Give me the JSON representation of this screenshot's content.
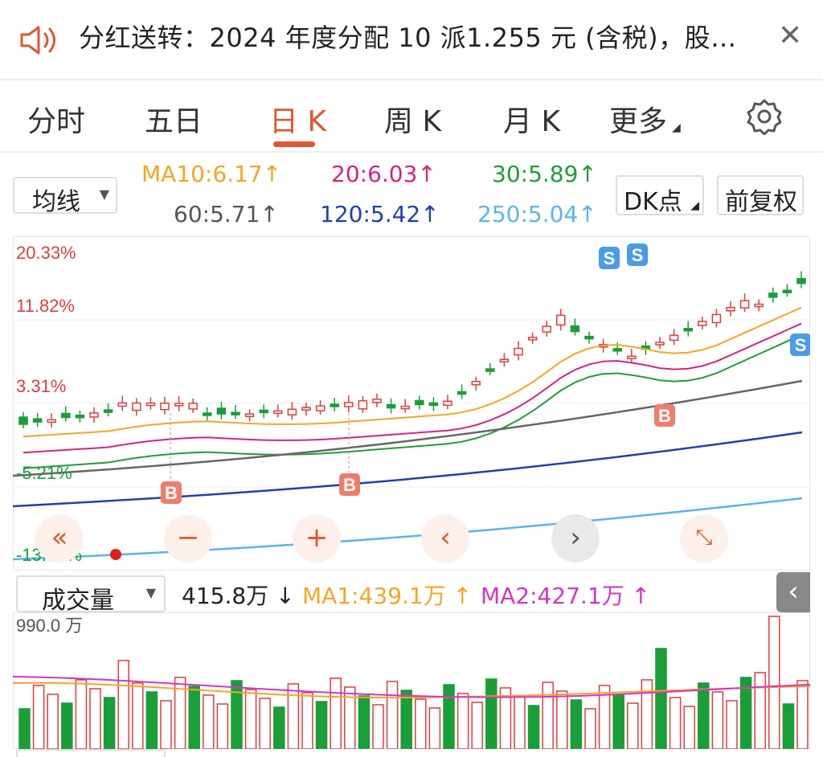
{
  "notice": {
    "text": "分红送转：2024 年度分配 10 派1.255 元 (含税)，股…",
    "close_icon": "close-icon",
    "speaker_icon": "speaker-icon"
  },
  "tabs": [
    {
      "label": "分时",
      "active": false
    },
    {
      "label": "五日",
      "active": false
    },
    {
      "label": "日 K",
      "active": true
    },
    {
      "label": "周 K",
      "active": false
    },
    {
      "label": "月 K",
      "active": false
    },
    {
      "label": "更多",
      "active": false
    }
  ],
  "indicator": {
    "select_label": "均线",
    "ma": [
      {
        "label": "MA10:6.17",
        "arrow": "↑",
        "color": "#f5a623"
      },
      {
        "label": "20:6.03",
        "arrow": "↑",
        "color": "#d6247f"
      },
      {
        "label": "30:5.89",
        "arrow": "↑",
        "color": "#1e9e38"
      },
      {
        "label": "60:5.71",
        "arrow": "↑",
        "color": "#555555"
      },
      {
        "label": "120:5.42",
        "arrow": "↑",
        "color": "#1f3fb5"
      },
      {
        "label": "250:5.04",
        "arrow": "↑",
        "color": "#5ab4ee"
      }
    ],
    "dk_button": "DK点",
    "adjust_button": "前复权"
  },
  "chart_axis": {
    "top": "20.33%",
    "upper": "11.82%",
    "mid": "3.31%",
    "low": "-5.21%",
    "bottom": "-13.72%"
  },
  "volume": {
    "select_label": "成交量",
    "current": "415.8万",
    "current_arrow": "↓",
    "ma1": "MA1:439.1万",
    "ma1_arrow": "↑",
    "ma2": "MA2:427.1万",
    "ma2_arrow": "↑",
    "axis_top": "990.0 万"
  },
  "signals": {
    "buy": "B",
    "sell": "S"
  },
  "colors": {
    "up": "#e23c3c",
    "down": "#1a9e38",
    "accent": "#e3562b"
  },
  "chart_data": {
    "type": "candlestick",
    "y_axis_labels": [
      "20.33%",
      "11.82%",
      "3.31%",
      "-5.21%",
      "-13.72%"
    ],
    "volume_axis_top": "990.0 万",
    "ma_lines": [
      "MA10",
      "20",
      "30",
      "60",
      "120",
      "250"
    ]
  }
}
